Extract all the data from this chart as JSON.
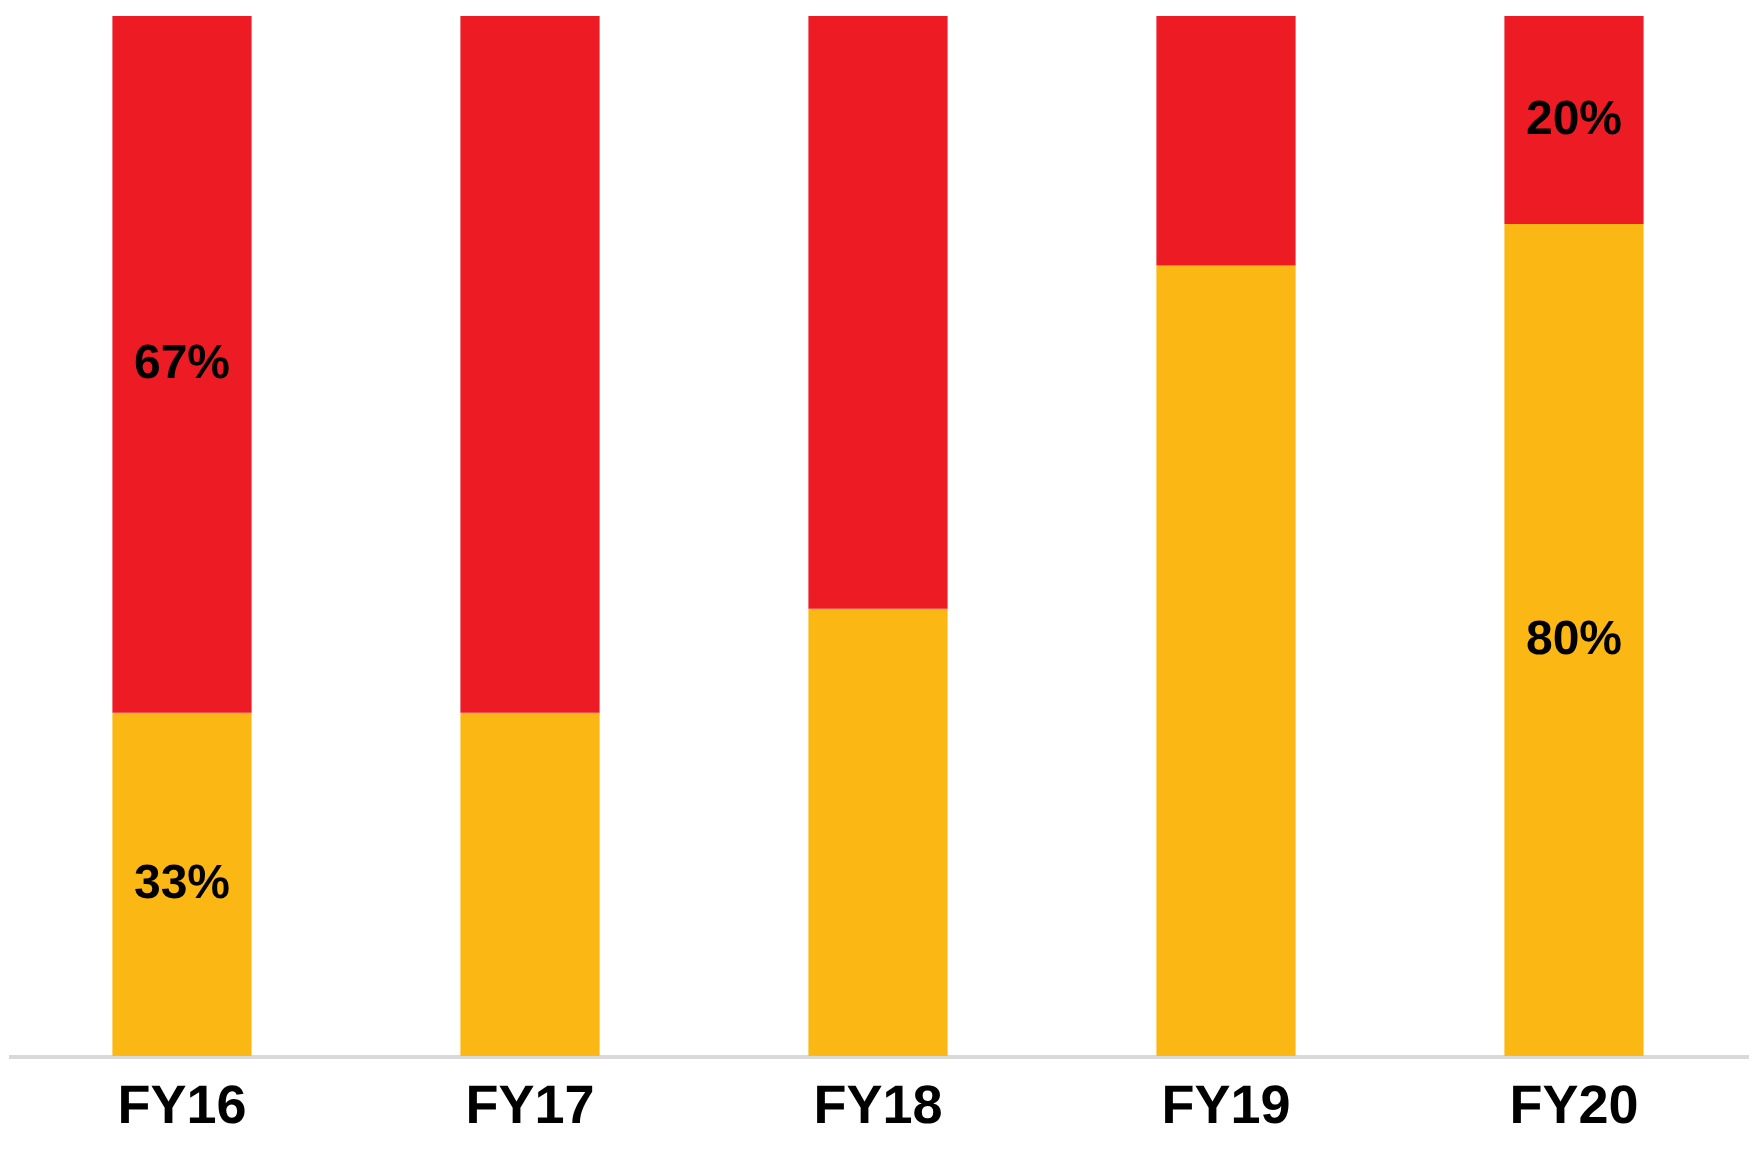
{
  "chart_data": {
    "type": "bar",
    "stacked": true,
    "categories": [
      "FY16",
      "FY17",
      "FY18",
      "FY19",
      "FY20"
    ],
    "ylim": [
      0,
      100
    ],
    "tick_labels": "x",
    "grid": false,
    "legend": false,
    "series": [
      {
        "color": "#fbb713",
        "values": [
          33,
          33,
          43,
          76,
          80
        ],
        "value_labels": [
          "33%",
          null,
          null,
          null,
          "80%"
        ]
      },
      {
        "color": "#ed1c24",
        "values": [
          67,
          67,
          57,
          24,
          20
        ],
        "value_labels": [
          "67%",
          null,
          null,
          null,
          "20%"
        ]
      }
    ]
  }
}
